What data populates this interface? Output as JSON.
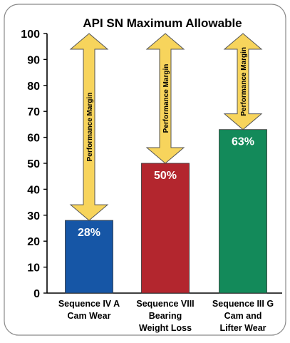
{
  "chart_data": {
    "type": "bar",
    "title": "API SN Maximum Allowable",
    "categories": [
      [
        "Sequence IV A",
        "Cam Wear"
      ],
      [
        "Sequence VIII",
        "Bearing",
        "Weight Loss"
      ],
      [
        "Sequence III G",
        "Cam and",
        "Lifter Wear"
      ]
    ],
    "values": [
      28,
      50,
      63
    ],
    "data_labels": [
      "28%",
      "50%",
      "63%"
    ],
    "bar_colors": [
      "#1656a6",
      "#b3262e",
      "#138a5a"
    ],
    "ylim": [
      0,
      100
    ],
    "yticks": [
      0,
      10,
      20,
      30,
      40,
      50,
      60,
      70,
      80,
      90,
      100
    ],
    "grid": false,
    "annotation": {
      "text": "Performance Margin",
      "from_value_to": 100,
      "arrow_fill": "#f7d45c",
      "arrow_stroke": "#555555"
    }
  }
}
